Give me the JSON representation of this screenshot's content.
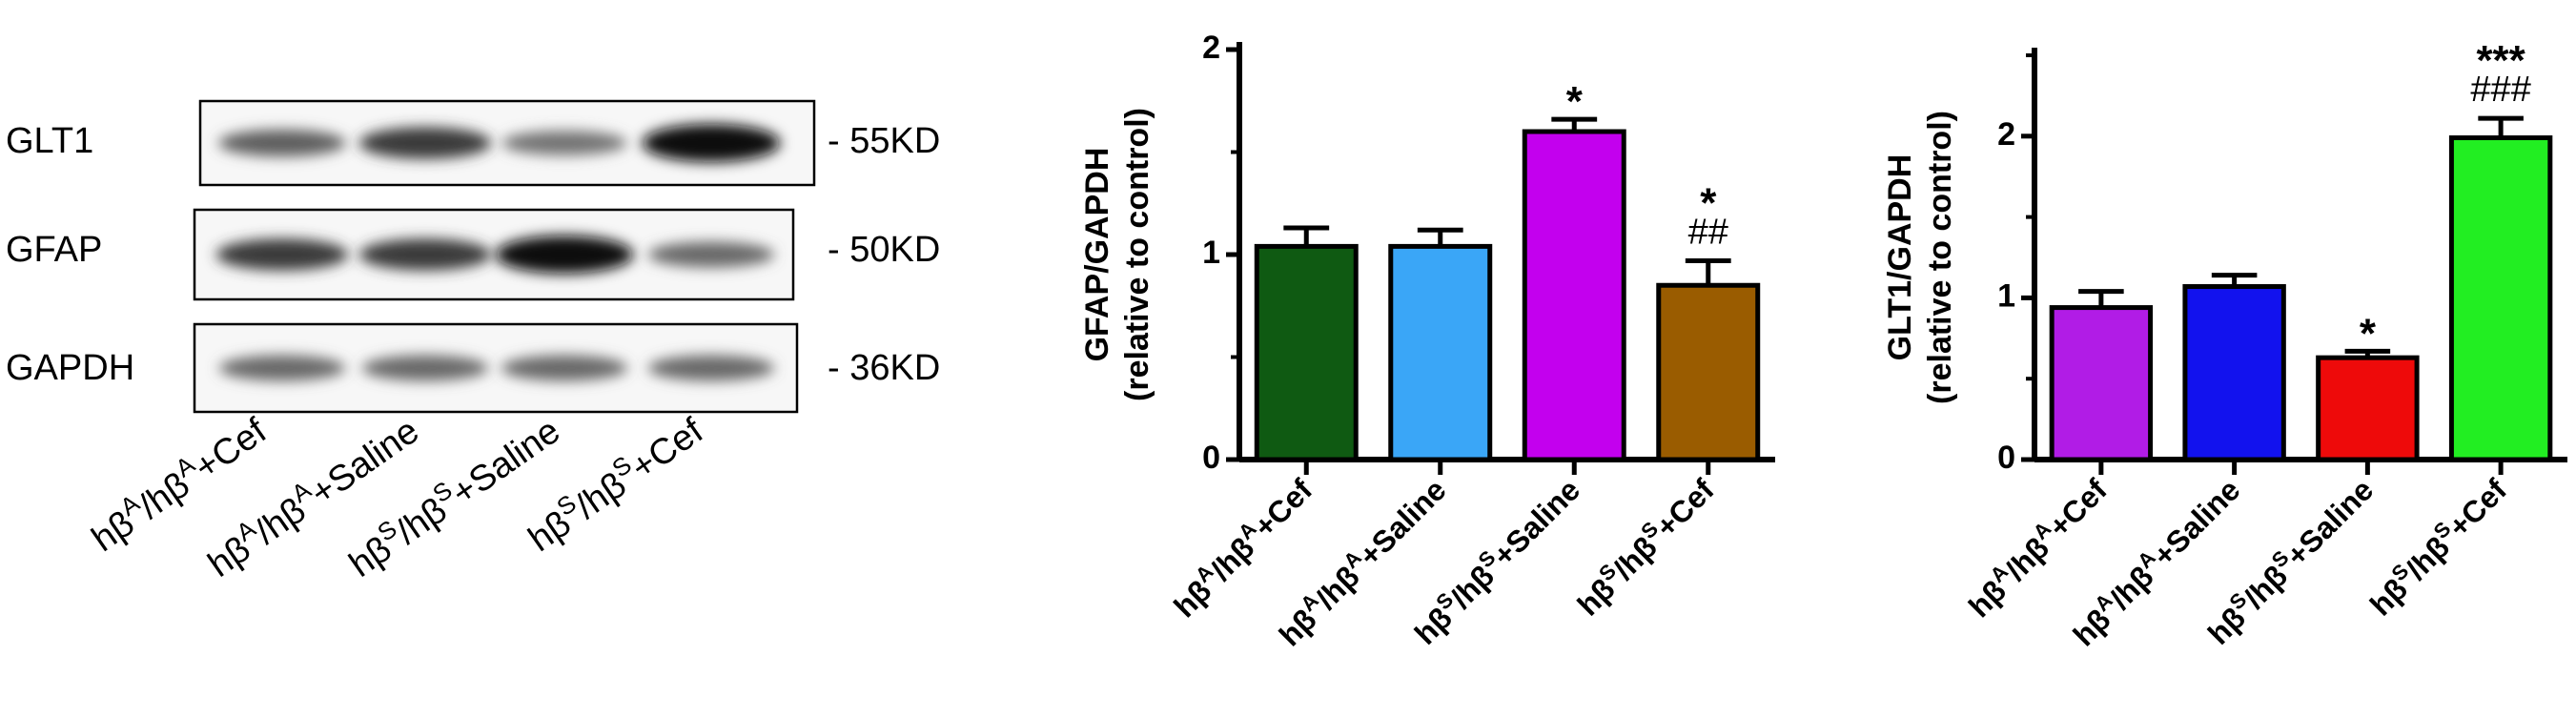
{
  "western_blot": {
    "rows": [
      {
        "protein": "GLT1",
        "marker": "- 55KD",
        "band_intensity": [
          0.55,
          0.75,
          0.45,
          1.0
        ]
      },
      {
        "protein": "GFAP",
        "marker": "- 50KD",
        "band_intensity": [
          0.75,
          0.75,
          1.0,
          0.5
        ]
      },
      {
        "protein": "GAPDH",
        "marker": "- 36KD",
        "band_intensity": [
          0.5,
          0.5,
          0.5,
          0.5
        ]
      }
    ],
    "lanes": [
      {
        "pre": "hβ",
        "sup1": "A",
        "mid": "/hβ",
        "sup2": "A",
        "post": "+Cef"
      },
      {
        "pre": "hβ",
        "sup1": "A",
        "mid": "/hβ",
        "sup2": "A",
        "post": "+Saline"
      },
      {
        "pre": "hβ",
        "sup1": "S",
        "mid": "/hβ",
        "sup2": "S",
        "post": "+Saline"
      },
      {
        "pre": "hβ",
        "sup1": "S",
        "mid": "/hβ",
        "sup2": "S",
        "post": "+Cef"
      }
    ]
  },
  "chart_data": [
    {
      "type": "bar",
      "ylabel_line1": "GFAP/GAPDH",
      "ylabel_line2": "(relative to control)",
      "ylim": [
        0,
        2
      ],
      "yticks": [
        "0",
        "1",
        "2"
      ],
      "grid": false,
      "categories": [
        {
          "pre": "hβ",
          "sup1": "A",
          "mid": "/hβ",
          "sup2": "A",
          "post": "+Cef"
        },
        {
          "pre": "hβ",
          "sup1": "A",
          "mid": "/hβ",
          "sup2": "A",
          "post": "+Saline"
        },
        {
          "pre": "hβ",
          "sup1": "S",
          "mid": "/hβ",
          "sup2": "S",
          "post": "+Saline"
        },
        {
          "pre": "hβ",
          "sup1": "S",
          "mid": "/hβ",
          "sup2": "S",
          "post": "+Cef"
        }
      ],
      "values": [
        1.04,
        1.04,
        1.6,
        0.85
      ],
      "errors": [
        0.09,
        0.08,
        0.06,
        0.12
      ],
      "colors": [
        "#0f5a12",
        "#3aa6f7",
        "#c300ee",
        "#9a5c00"
      ],
      "annotations": [
        [
          "",
          ""
        ],
        [
          "",
          ""
        ],
        [
          "*",
          ""
        ],
        [
          "*",
          "##"
        ]
      ]
    },
    {
      "type": "bar",
      "ylabel_line1": "GLT1/GAPDH",
      "ylabel_line2": "(relative to control)",
      "ylim": [
        0,
        2.5
      ],
      "yticks": [
        "0",
        "1",
        "2"
      ],
      "grid": false,
      "categories": [
        {
          "pre": "hβ",
          "sup1": "A",
          "mid": "/hβ",
          "sup2": "A",
          "post": "+Cef"
        },
        {
          "pre": "hβ",
          "sup1": "A",
          "mid": "/hβ",
          "sup2": "A",
          "post": "+Saline"
        },
        {
          "pre": "hβ",
          "sup1": "S",
          "mid": "/hβ",
          "sup2": "S",
          "post": "+Saline"
        },
        {
          "pre": "hβ",
          "sup1": "S",
          "mid": "/hβ",
          "sup2": "S",
          "post": "+Cef"
        }
      ],
      "values": [
        0.94,
        1.07,
        0.63,
        1.99
      ],
      "errors": [
        0.1,
        0.07,
        0.04,
        0.12
      ],
      "colors": [
        "#b11ce6",
        "#1212ee",
        "#ee0a0a",
        "#22ee22"
      ],
      "annotations": [
        [
          "",
          ""
        ],
        [
          "",
          ""
        ],
        [
          "*",
          ""
        ],
        [
          "***",
          "###"
        ]
      ]
    }
  ]
}
